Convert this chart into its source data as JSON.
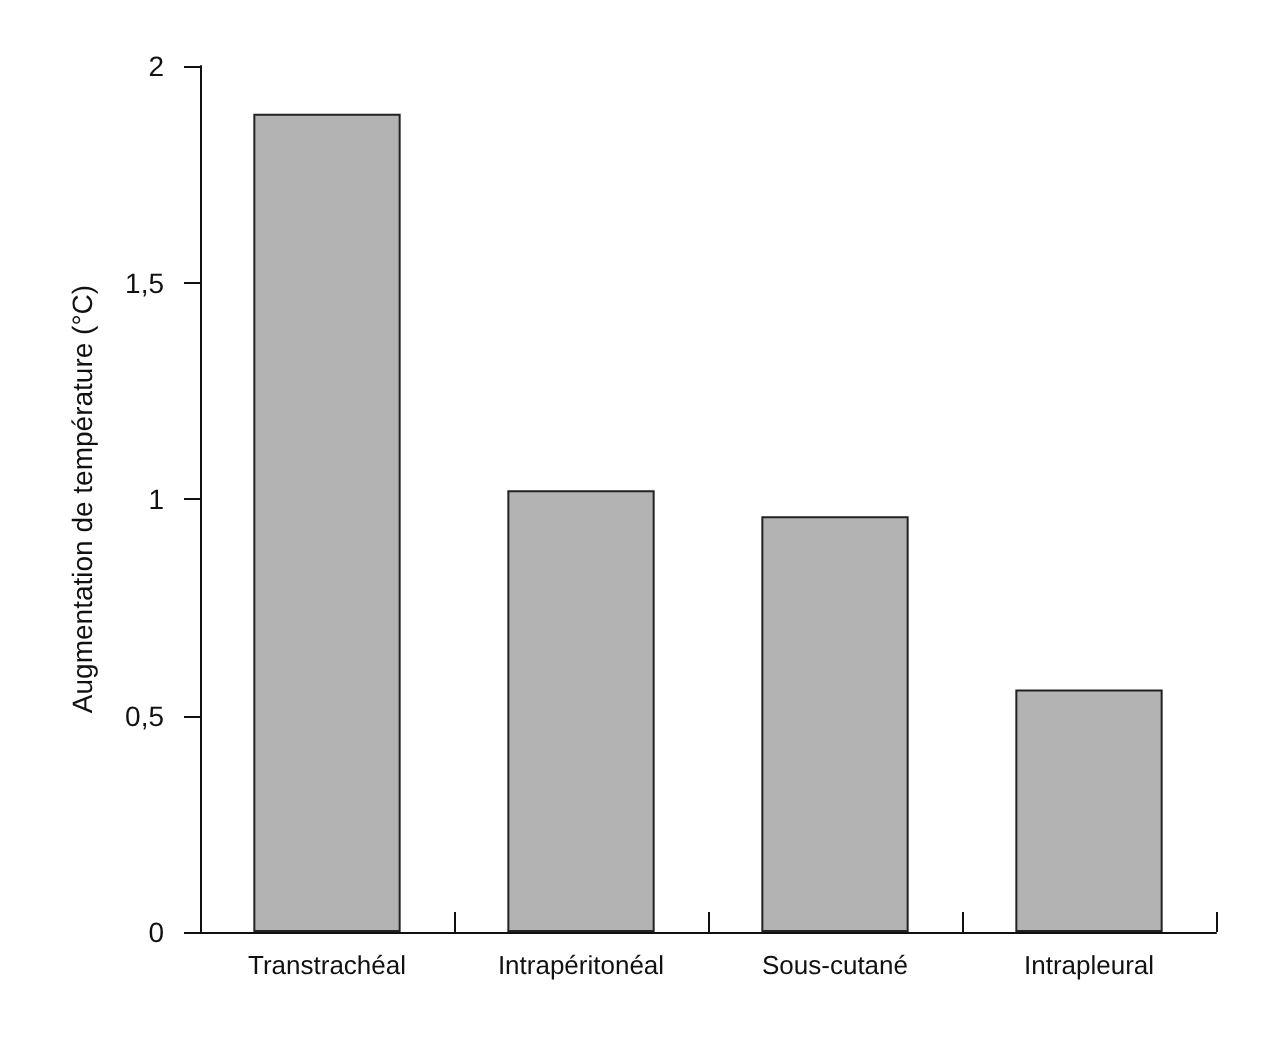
{
  "chart_data": {
    "type": "bar",
    "ylabel": "Augmentation de température (°C)",
    "categories": [
      "Transtrachéal",
      "Intrapéritonéal",
      "Sous-cutané",
      "Intrapleural"
    ],
    "values": [
      1.89,
      1.02,
      0.96,
      0.56
    ],
    "color": "#b3b3b3",
    "ylim": [
      0,
      2
    ],
    "yticks": [
      0,
      {
        "value": 0.5,
        "label": "0,5"
      },
      1,
      {
        "value": 1.5,
        "label": "1,5"
      },
      2
    ],
    "grid": false
  }
}
